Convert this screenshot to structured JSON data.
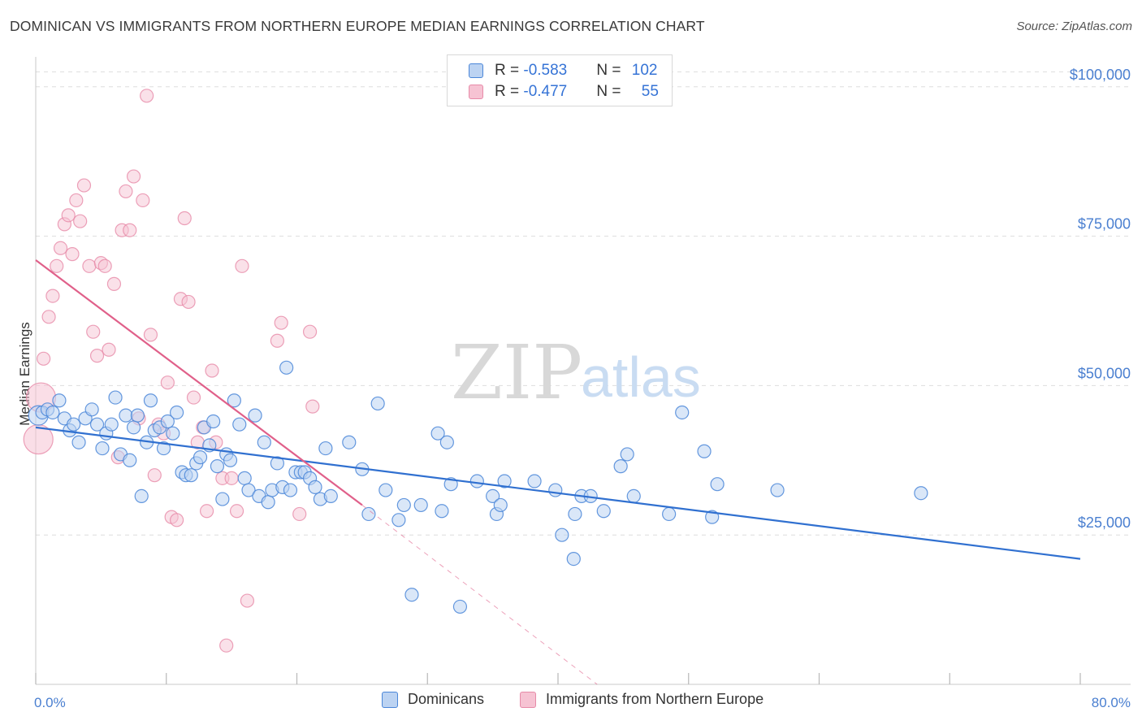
{
  "header": {
    "title": "DOMINICAN VS IMMIGRANTS FROM NORTHERN EUROPE MEDIAN EARNINGS CORRELATION CHART",
    "source": "Source: ZipAtlas.com"
  },
  "watermark": {
    "zip": "ZIP",
    "atlas": "atlas"
  },
  "legend": {
    "blue": {
      "r_label": "R = ",
      "r": "-0.583",
      "n_label": "N = ",
      "n": "102"
    },
    "pink": {
      "r_label": "R = ",
      "r": "-0.477",
      "n_label": "N = ",
      "n": "55"
    }
  },
  "colors": {
    "blue": "#4a86d8",
    "blue_fill": "#bcd3f2",
    "blue_line": "#3070d0",
    "pink": "#e78aa8",
    "pink_fill": "#f6c3d3",
    "pink_line": "#e0608a",
    "tick_text": "#4a7fd0",
    "grid": "#dddddd"
  },
  "chart_data": {
    "type": "scatter",
    "title": "DOMINICAN VS IMMIGRANTS FROM NORTHERN EUROPE MEDIAN EARNINGS CORRELATION CHART",
    "xlabel": "",
    "ylabel": "Median Earnings",
    "xlim": [
      0,
      80
    ],
    "ylim": [
      0,
      105000
    ],
    "x_tick_labels": [
      "0.0%",
      "80.0%"
    ],
    "y_ticks": [
      25000,
      50000,
      75000,
      100000
    ],
    "y_tick_labels": [
      "$25,000",
      "$50,000",
      "$75,000",
      "$100,000"
    ],
    "grid": true,
    "series": [
      {
        "name": "Dominicans",
        "color": "#4a86d8",
        "points": [
          [
            0.2,
            45000
          ],
          [
            0.5,
            45500
          ],
          [
            0.9,
            46000
          ],
          [
            1.3,
            45500
          ],
          [
            1.8,
            47500
          ],
          [
            2.2,
            44500
          ],
          [
            2.6,
            42500
          ],
          [
            2.9,
            43500
          ],
          [
            3.3,
            40500
          ],
          [
            3.8,
            44500
          ],
          [
            4.3,
            46000
          ],
          [
            4.7,
            43500
          ],
          [
            5.1,
            39500
          ],
          [
            5.4,
            42000
          ],
          [
            5.8,
            43500
          ],
          [
            6.1,
            48000
          ],
          [
            6.5,
            38500
          ],
          [
            6.9,
            45000
          ],
          [
            7.2,
            37500
          ],
          [
            7.5,
            43000
          ],
          [
            7.8,
            45000
          ],
          [
            8.1,
            31500
          ],
          [
            8.5,
            40500
          ],
          [
            8.8,
            47500
          ],
          [
            9.1,
            42500
          ],
          [
            9.5,
            43000
          ],
          [
            9.8,
            39500
          ],
          [
            10.1,
            44000
          ],
          [
            10.5,
            42000
          ],
          [
            10.8,
            45500
          ],
          [
            11.2,
            35500
          ],
          [
            11.5,
            35000
          ],
          [
            11.9,
            35000
          ],
          [
            12.3,
            37000
          ],
          [
            12.6,
            38000
          ],
          [
            12.9,
            43000
          ],
          [
            13.3,
            40000
          ],
          [
            13.6,
            44000
          ],
          [
            13.9,
            36500
          ],
          [
            14.3,
            31000
          ],
          [
            14.6,
            38500
          ],
          [
            14.9,
            37500
          ],
          [
            15.2,
            47500
          ],
          [
            15.6,
            43500
          ],
          [
            16.0,
            34500
          ],
          [
            16.3,
            32500
          ],
          [
            16.8,
            45000
          ],
          [
            17.1,
            31500
          ],
          [
            17.5,
            40500
          ],
          [
            17.8,
            30500
          ],
          [
            18.1,
            32500
          ],
          [
            18.5,
            37000
          ],
          [
            18.9,
            33000
          ],
          [
            19.2,
            53000
          ],
          [
            19.5,
            32500
          ],
          [
            19.9,
            35500
          ],
          [
            20.3,
            35500
          ],
          [
            20.6,
            35500
          ],
          [
            21.0,
            34500
          ],
          [
            21.4,
            33000
          ],
          [
            21.8,
            31000
          ],
          [
            22.2,
            39500
          ],
          [
            22.6,
            31500
          ],
          [
            24.0,
            40500
          ],
          [
            25.0,
            36000
          ],
          [
            25.5,
            28500
          ],
          [
            26.2,
            47000
          ],
          [
            26.8,
            32500
          ],
          [
            27.8,
            27500
          ],
          [
            28.2,
            30000
          ],
          [
            28.8,
            15000
          ],
          [
            29.5,
            30000
          ],
          [
            30.8,
            42000
          ],
          [
            31.1,
            29000
          ],
          [
            31.5,
            40500
          ],
          [
            31.8,
            33500
          ],
          [
            32.5,
            13000
          ],
          [
            33.8,
            34000
          ],
          [
            35.0,
            31500
          ],
          [
            35.3,
            28500
          ],
          [
            35.6,
            30000
          ],
          [
            35.9,
            34000
          ],
          [
            38.2,
            34000
          ],
          [
            39.8,
            32500
          ],
          [
            40.3,
            25000
          ],
          [
            41.2,
            21000
          ],
          [
            41.3,
            28500
          ],
          [
            41.8,
            31500
          ],
          [
            42.5,
            31500
          ],
          [
            43.5,
            29000
          ],
          [
            44.8,
            36500
          ],
          [
            45.3,
            38500
          ],
          [
            45.8,
            31500
          ],
          [
            48.5,
            28500
          ],
          [
            49.5,
            45500
          ],
          [
            51.2,
            39000
          ],
          [
            51.8,
            28000
          ],
          [
            52.2,
            33500
          ],
          [
            56.8,
            32500
          ],
          [
            67.8,
            32000
          ]
        ],
        "trend": {
          "x": [
            0,
            80
          ],
          "y": [
            43000,
            21000
          ]
        }
      },
      {
        "name": "Immigrants from Northern Europe",
        "color": "#e78aa8",
        "points": [
          [
            0.2,
            41000
          ],
          [
            0.4,
            48000
          ],
          [
            0.6,
            54500
          ],
          [
            1.0,
            61500
          ],
          [
            1.3,
            65000
          ],
          [
            1.6,
            70000
          ],
          [
            1.9,
            73000
          ],
          [
            2.2,
            77000
          ],
          [
            2.5,
            78500
          ],
          [
            2.8,
            72000
          ],
          [
            3.1,
            81000
          ],
          [
            3.4,
            77500
          ],
          [
            3.7,
            83500
          ],
          [
            4.1,
            70000
          ],
          [
            4.4,
            59000
          ],
          [
            4.7,
            55000
          ],
          [
            5.0,
            70500
          ],
          [
            5.3,
            70000
          ],
          [
            5.6,
            56000
          ],
          [
            6.0,
            67000
          ],
          [
            6.3,
            38000
          ],
          [
            6.6,
            76000
          ],
          [
            6.9,
            82500
          ],
          [
            7.2,
            76000
          ],
          [
            7.5,
            85000
          ],
          [
            7.9,
            44500
          ],
          [
            8.2,
            81000
          ],
          [
            8.5,
            98500
          ],
          [
            8.8,
            58500
          ],
          [
            9.1,
            35000
          ],
          [
            9.4,
            43500
          ],
          [
            9.8,
            42000
          ],
          [
            10.1,
            50500
          ],
          [
            10.4,
            28000
          ],
          [
            10.8,
            27500
          ],
          [
            11.1,
            64500
          ],
          [
            11.4,
            78000
          ],
          [
            11.7,
            64000
          ],
          [
            12.1,
            48000
          ],
          [
            12.4,
            40500
          ],
          [
            12.8,
            43000
          ],
          [
            13.1,
            29000
          ],
          [
            13.5,
            52500
          ],
          [
            13.8,
            40500
          ],
          [
            14.3,
            34500
          ],
          [
            14.6,
            6500
          ],
          [
            15.0,
            34500
          ],
          [
            15.4,
            29000
          ],
          [
            15.8,
            70000
          ],
          [
            16.2,
            14000
          ],
          [
            18.5,
            57500
          ],
          [
            18.8,
            60500
          ],
          [
            20.2,
            28500
          ],
          [
            21.0,
            59000
          ],
          [
            21.2,
            46500
          ]
        ],
        "trend": {
          "x": [
            0,
            25
          ],
          "y": [
            71000,
            30000
          ]
        },
        "trend_extension": {
          "x": [
            25,
            43
          ],
          "y": [
            30000,
            0
          ]
        }
      }
    ]
  },
  "bottom_legend": {
    "blue_label": "Dominicans",
    "pink_label": "Immigrants from Northern Europe"
  }
}
